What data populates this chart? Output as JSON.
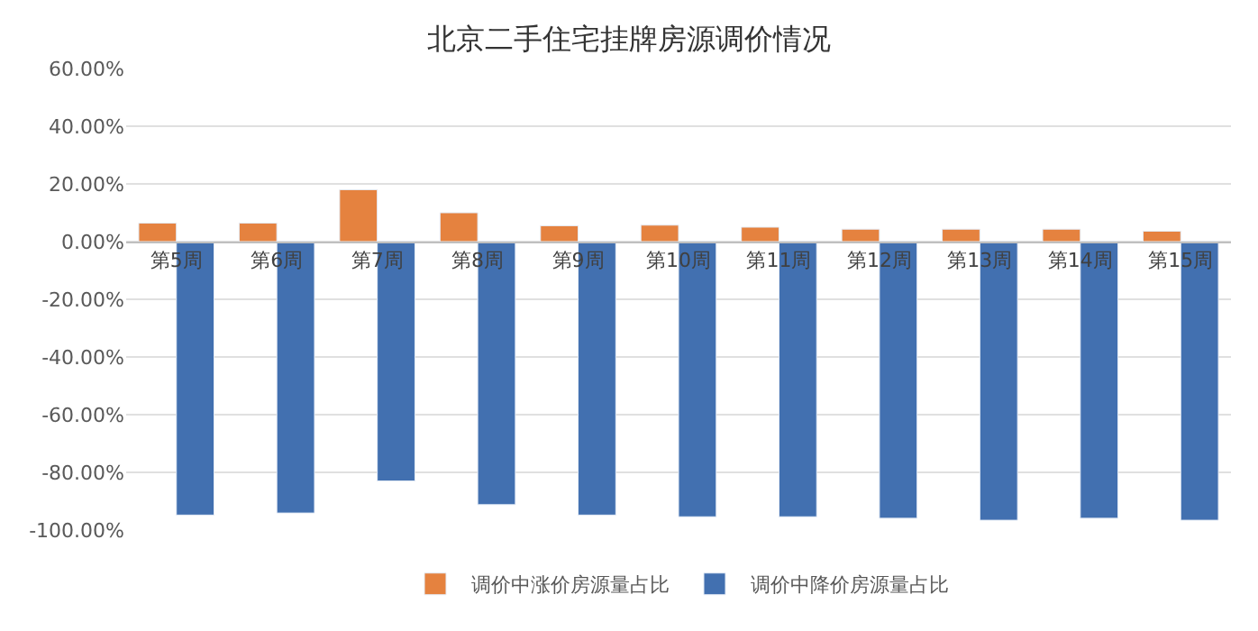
{
  "chart_data": {
    "type": "bar",
    "title": "北京二手住宅挂牌房源调价情况",
    "categories": [
      "第5周",
      "第6周",
      "第7周",
      "第8周",
      "第9周",
      "第10周",
      "第11周",
      "第12周",
      "第13周",
      "第14周",
      "第15周"
    ],
    "series": [
      {
        "name": "调价中涨价房源量占比",
        "color": "#e5823f",
        "values": [
          6.4,
          6.4,
          18,
          10,
          5.5,
          5.7,
          5.0,
          4.3,
          4.3,
          4.3,
          3.6
        ]
      },
      {
        "name": "调价中降价房源量占比",
        "color": "#4270b0",
        "values": [
          -94.8,
          -94.1,
          -83,
          -91.2,
          -94.8,
          -95.4,
          -95.4,
          -95.9,
          -96.6,
          -95.9,
          -96.6
        ]
      }
    ],
    "ylim": [
      -100,
      60
    ],
    "yticks": [
      {
        "value": -100,
        "label": "-100.00%"
      },
      {
        "value": -80,
        "label": "-80.00%"
      },
      {
        "value": -60,
        "label": "-60.00%"
      },
      {
        "value": -40,
        "label": "-40.00%"
      },
      {
        "value": -20,
        "label": "-20.00%"
      },
      {
        "value": 0,
        "label": "0.00%"
      },
      {
        "value": 20,
        "label": "20.00%"
      },
      {
        "value": 40,
        "label": "40.00%"
      },
      {
        "value": 60,
        "label": "60.00%"
      }
    ],
    "grid": "y",
    "legend": "bottom"
  }
}
